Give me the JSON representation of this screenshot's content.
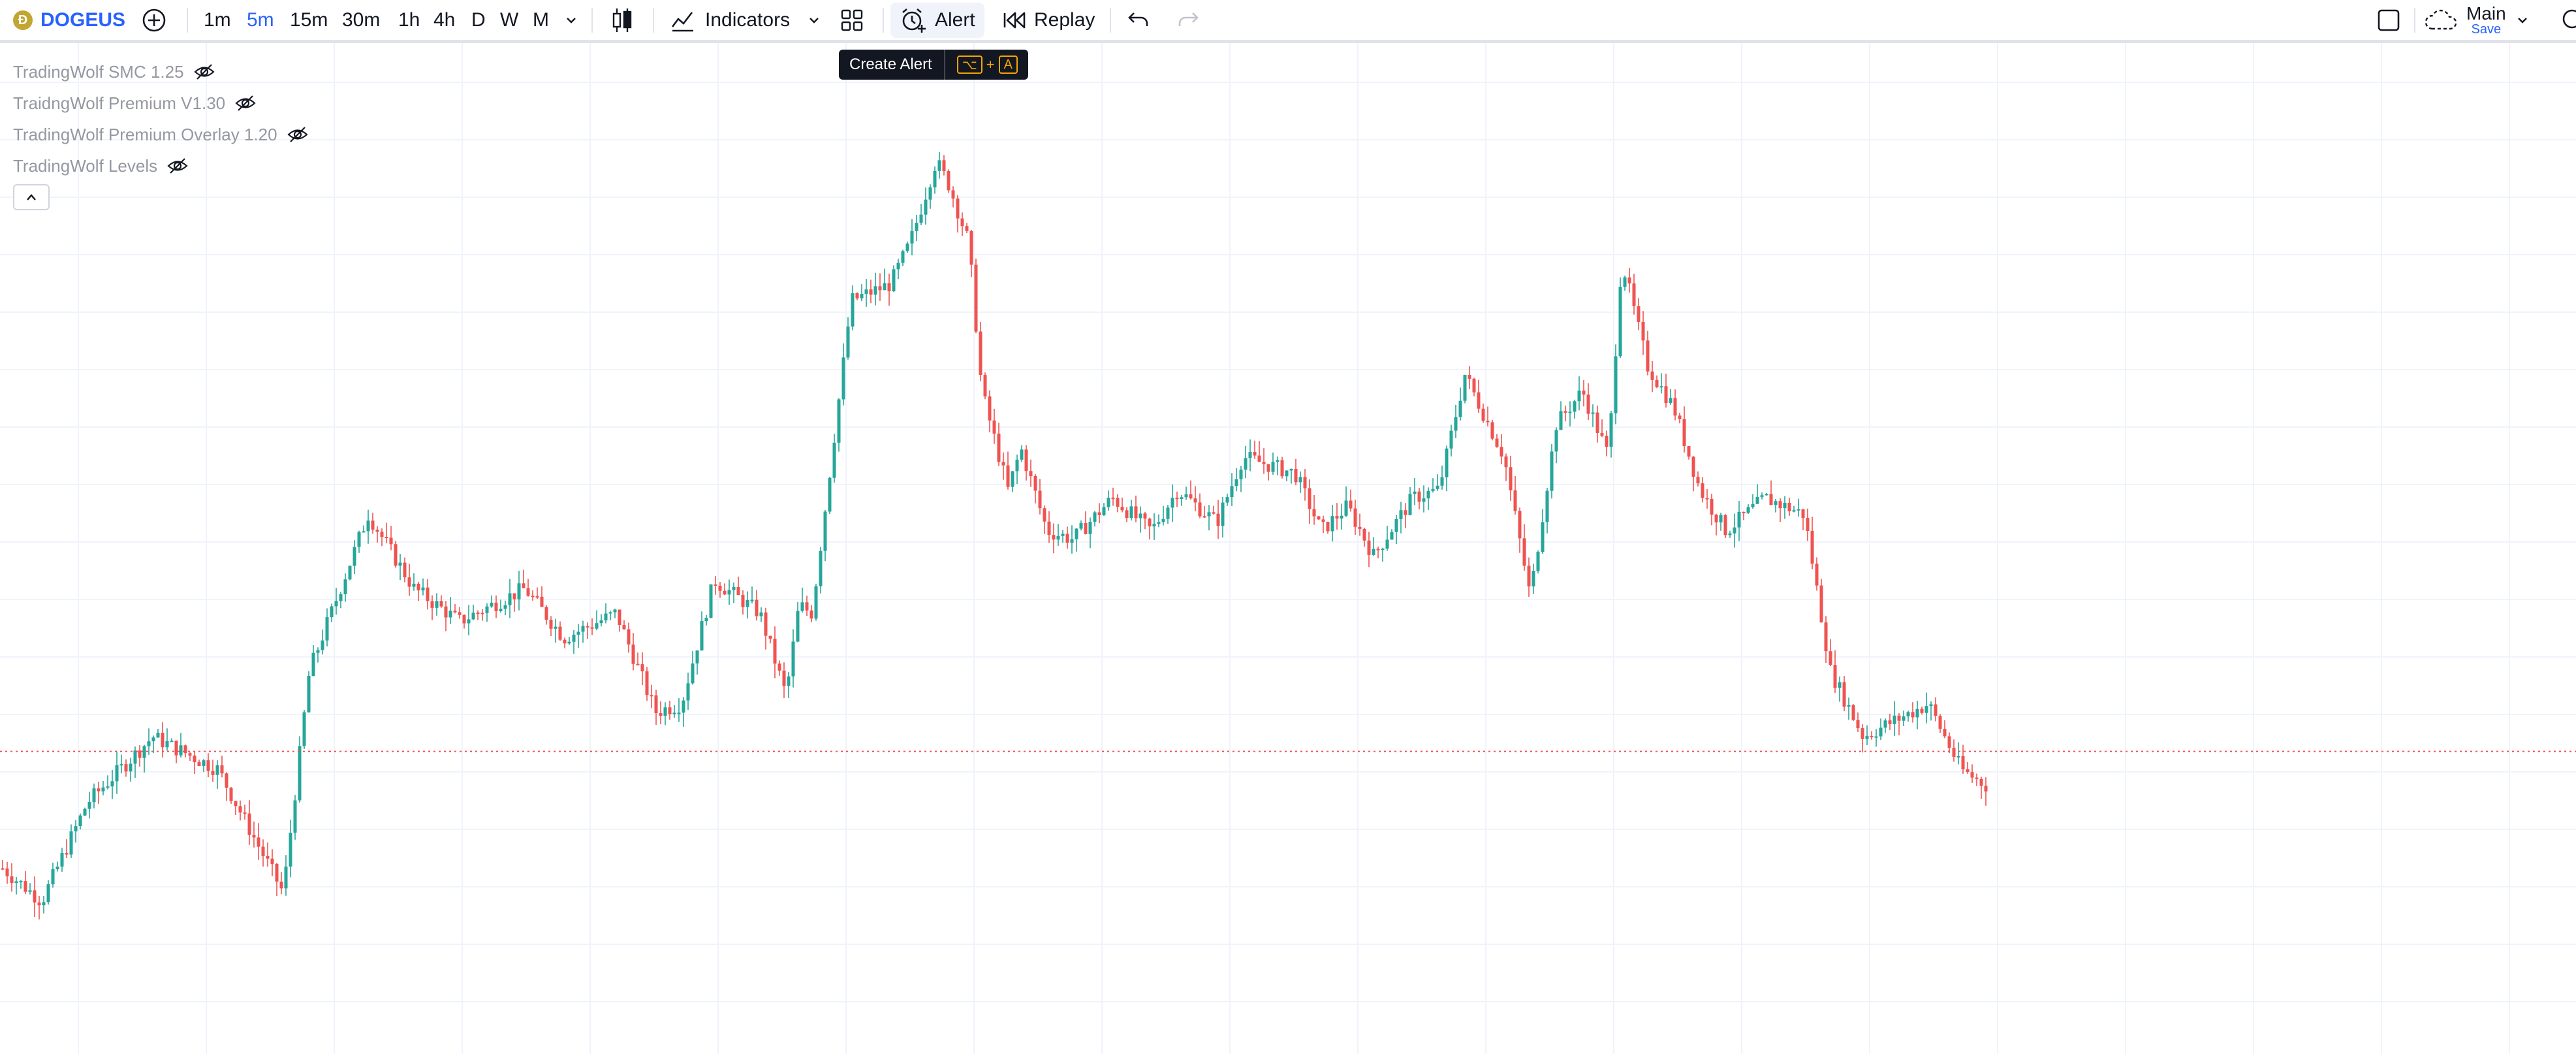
{
  "toolbar": {
    "symbol": "DOGEUS",
    "timeframes": [
      {
        "label": "1m",
        "active": false
      },
      {
        "label": "5m",
        "active": true
      },
      {
        "label": "15m",
        "active": false
      },
      {
        "label": "30m",
        "active": false
      },
      {
        "label": "1h",
        "active": false
      },
      {
        "label": "4h",
        "active": false
      },
      {
        "label": "D",
        "active": false
      },
      {
        "label": "W",
        "active": false
      },
      {
        "label": "M",
        "active": false
      }
    ],
    "indicators_label": "Indicators",
    "alert_label": "Alert",
    "replay_label": "Replay",
    "layout_name": "Main",
    "layout_save": "Save"
  },
  "tooltip": {
    "text": "Create Alert",
    "shortcut_key_1": "⌥",
    "shortcut_plus": "+",
    "shortcut_key_2": "A"
  },
  "legend": {
    "indicators": [
      {
        "name": "TradingWolf SMC 1.25",
        "hidden": true
      },
      {
        "name": "TraidngWolf Premium V1.30",
        "hidden": true
      },
      {
        "name": "TradingWolf Premium Overlay 1.20",
        "hidden": true
      },
      {
        "name": "TradingWolf Levels",
        "hidden": true
      }
    ]
  },
  "colors": {
    "up": "#26a69a",
    "down": "#ef5350",
    "accent": "#2962ff",
    "grid": "#f0f3fa",
    "price_line": "#ef5350"
  },
  "chart_data": {
    "type": "candlestick",
    "interval": "5m",
    "shape_note_excluded": true,
    "close_path": [
      [
        0,
        0.14
      ],
      [
        60,
        0.1
      ],
      [
        130,
        0.22
      ],
      [
        230,
        0.3
      ],
      [
        330,
        0.26
      ],
      [
        430,
        0.11
      ],
      [
        470,
        0.38
      ],
      [
        560,
        0.57
      ],
      [
        630,
        0.48
      ],
      [
        700,
        0.44
      ],
      [
        800,
        0.48
      ],
      [
        860,
        0.42
      ],
      [
        940,
        0.45
      ],
      [
        1000,
        0.33
      ],
      [
        1040,
        0.34
      ],
      [
        1090,
        0.49
      ],
      [
        1160,
        0.45
      ],
      [
        1200,
        0.35
      ],
      [
        1220,
        0.46
      ],
      [
        1240,
        0.45
      ],
      [
        1300,
        0.83
      ],
      [
        1360,
        0.85
      ],
      [
        1390,
        0.9
      ],
      [
        1430,
        1.0
      ],
      [
        1450,
        0.97
      ],
      [
        1480,
        0.9
      ],
      [
        1500,
        0.72
      ],
      [
        1540,
        0.6
      ],
      [
        1560,
        0.65
      ],
      [
        1600,
        0.55
      ],
      [
        1640,
        0.54
      ],
      [
        1700,
        0.59
      ],
      [
        1760,
        0.55
      ],
      [
        1800,
        0.6
      ],
      [
        1860,
        0.56
      ],
      [
        1900,
        0.64
      ],
      [
        1980,
        0.62
      ],
      [
        2020,
        0.55
      ],
      [
        2060,
        0.58
      ],
      [
        2100,
        0.52
      ],
      [
        2160,
        0.59
      ],
      [
        2200,
        0.6
      ],
      [
        2240,
        0.74
      ],
      [
        2300,
        0.64
      ],
      [
        2340,
        0.47
      ],
      [
        2380,
        0.68
      ],
      [
        2420,
        0.72
      ],
      [
        2460,
        0.64
      ],
      [
        2480,
        0.88
      ],
      [
        2520,
        0.75
      ],
      [
        2560,
        0.7
      ],
      [
        2600,
        0.6
      ],
      [
        2640,
        0.55
      ],
      [
        2700,
        0.59
      ],
      [
        2760,
        0.57
      ],
      [
        2800,
        0.38
      ],
      [
        2850,
        0.3
      ],
      [
        2900,
        0.32
      ],
      [
        2950,
        0.34
      ],
      [
        3000,
        0.26
      ],
      [
        3040,
        0.24
      ]
    ],
    "last_price_level": 0.282
  }
}
